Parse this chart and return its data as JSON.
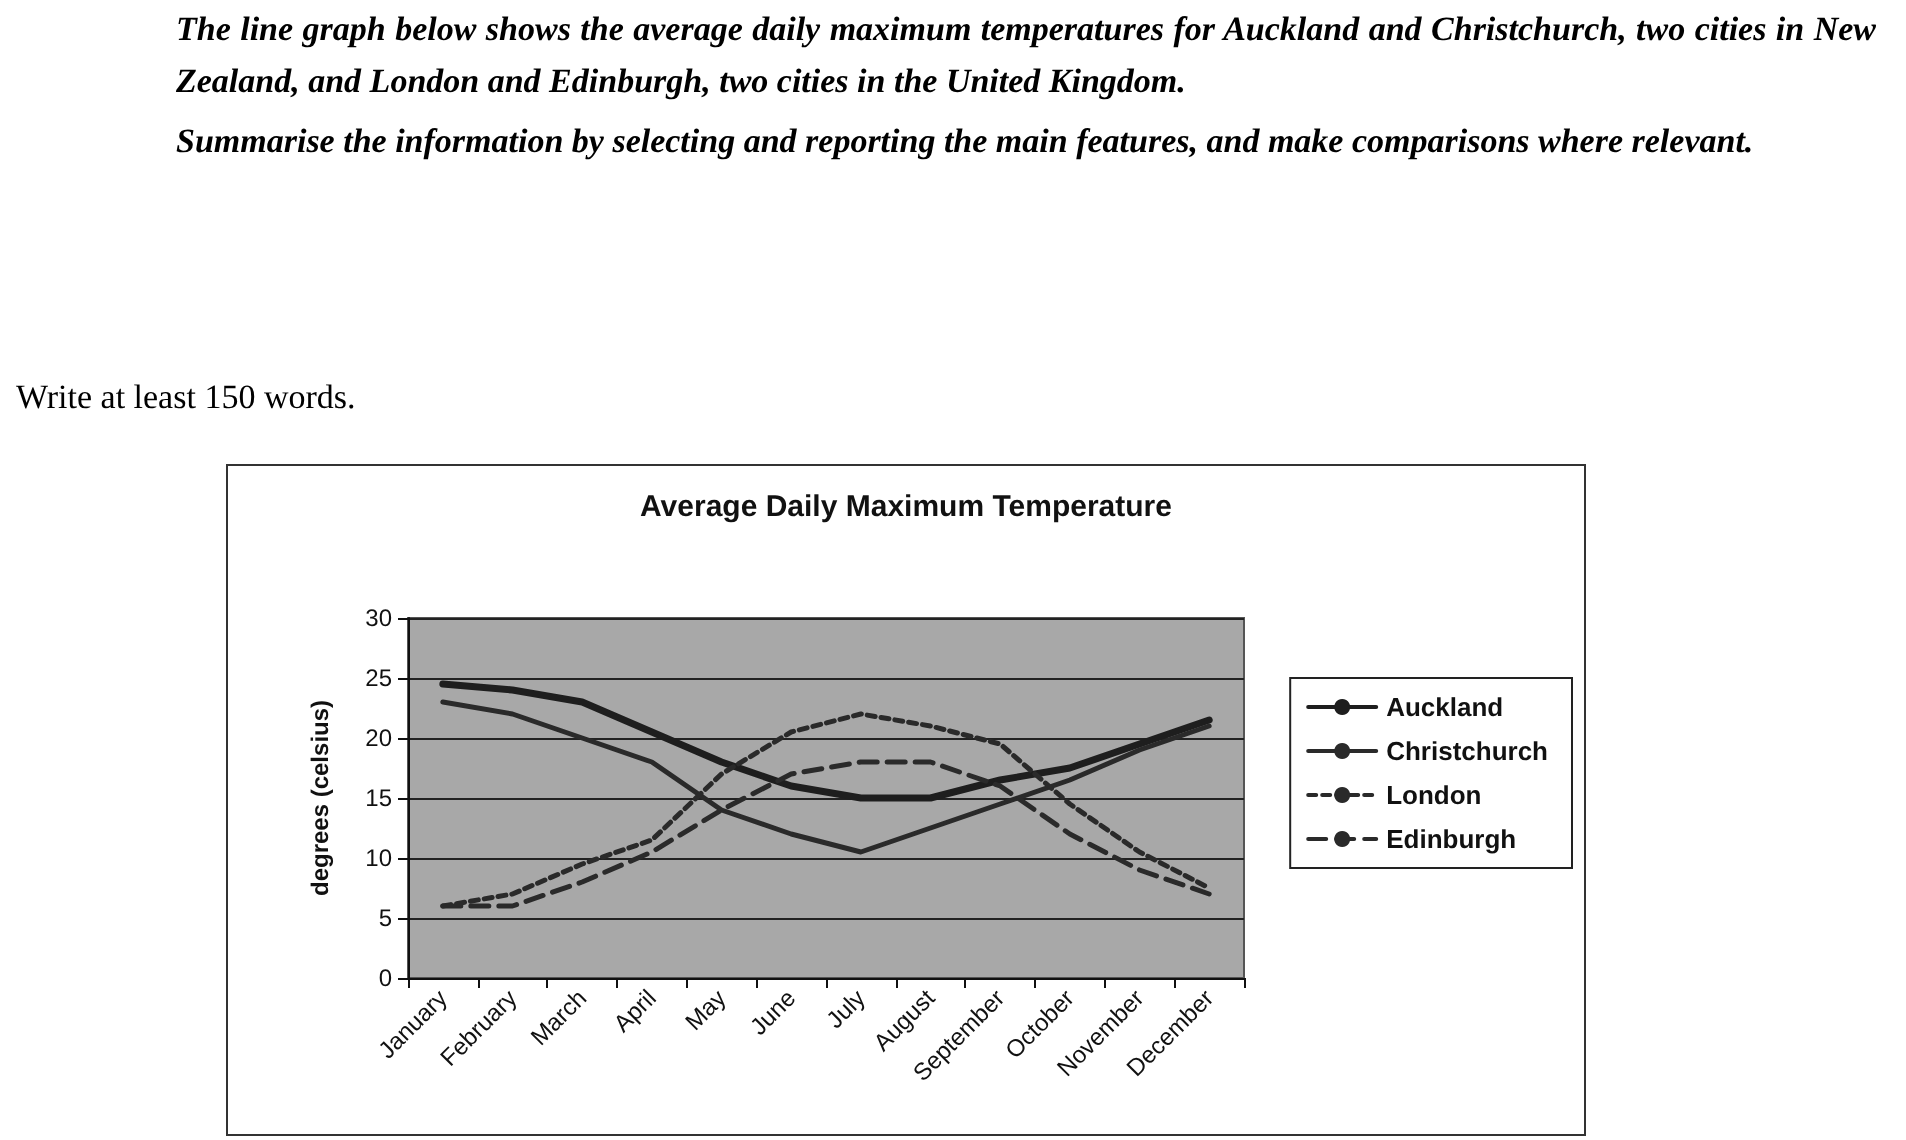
{
  "chart_data": {
    "type": "line",
    "title": "Average Daily Maximum Temperature",
    "ylabel": "degrees (celsius)",
    "annotations": [
      "The line graph below shows the average daily maximum temperatures for Auckland and Christchurch, two cities in New Zealand, and London and Edinburgh, two cities in the United Kingdom.",
      "Summarise the information by selecting and reporting the main features, and make comparisons where relevant.",
      "Write at least 150 words."
    ],
    "categories": [
      "January",
      "February",
      "March",
      "April",
      "May",
      "June",
      "July",
      "August",
      "September",
      "October",
      "November",
      "December"
    ],
    "series": [
      {
        "name": "Auckland",
        "color": "#1e1e1e",
        "line_style": "solid",
        "values": [
          24.5,
          24,
          23,
          20.5,
          18,
          16,
          15,
          15,
          16.5,
          17.5,
          19.5,
          21.5
        ]
      },
      {
        "name": "Christchurch",
        "color": "#2a2a2a",
        "line_style": "solid",
        "values": [
          23,
          22,
          20,
          18,
          14,
          12,
          10.5,
          12.5,
          14.5,
          16.5,
          19,
          21
        ]
      },
      {
        "name": "London",
        "color": "#2a2a2a",
        "line_style": "dotted",
        "values": [
          6,
          7,
          9.5,
          11.5,
          17,
          20.5,
          22,
          21,
          19.5,
          14.5,
          10.5,
          7.5
        ]
      },
      {
        "name": "Edinburgh",
        "color": "#2a2a2a",
        "line_style": "dashed",
        "values": [
          6,
          6,
          8,
          10.5,
          14,
          17,
          18,
          18,
          16,
          12,
          9,
          7
        ]
      }
    ],
    "ylim": [
      0,
      30
    ],
    "yticks": [
      0,
      5,
      10,
      15,
      20,
      25,
      30
    ],
    "grid": "y",
    "legend": "right",
    "marker": "none"
  }
}
